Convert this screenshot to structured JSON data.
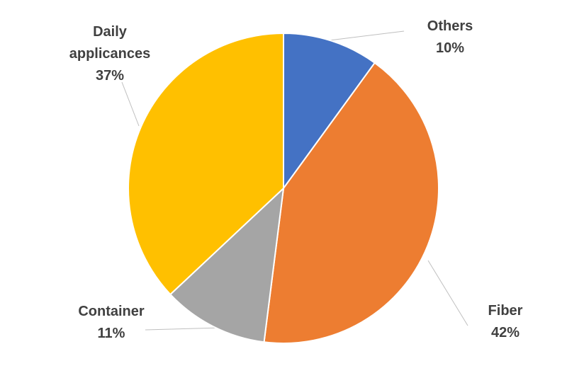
{
  "chart_data": {
    "type": "pie",
    "categories": [
      "Others",
      "Fiber",
      "Container",
      "Daily applicances"
    ],
    "values": [
      10,
      42,
      11,
      37
    ],
    "value_labels": [
      "10%",
      "42%",
      "11%",
      "37%"
    ],
    "colors": [
      "#4472c4",
      "#ed7d31",
      "#a5a5a5",
      "#ffc000"
    ]
  }
}
